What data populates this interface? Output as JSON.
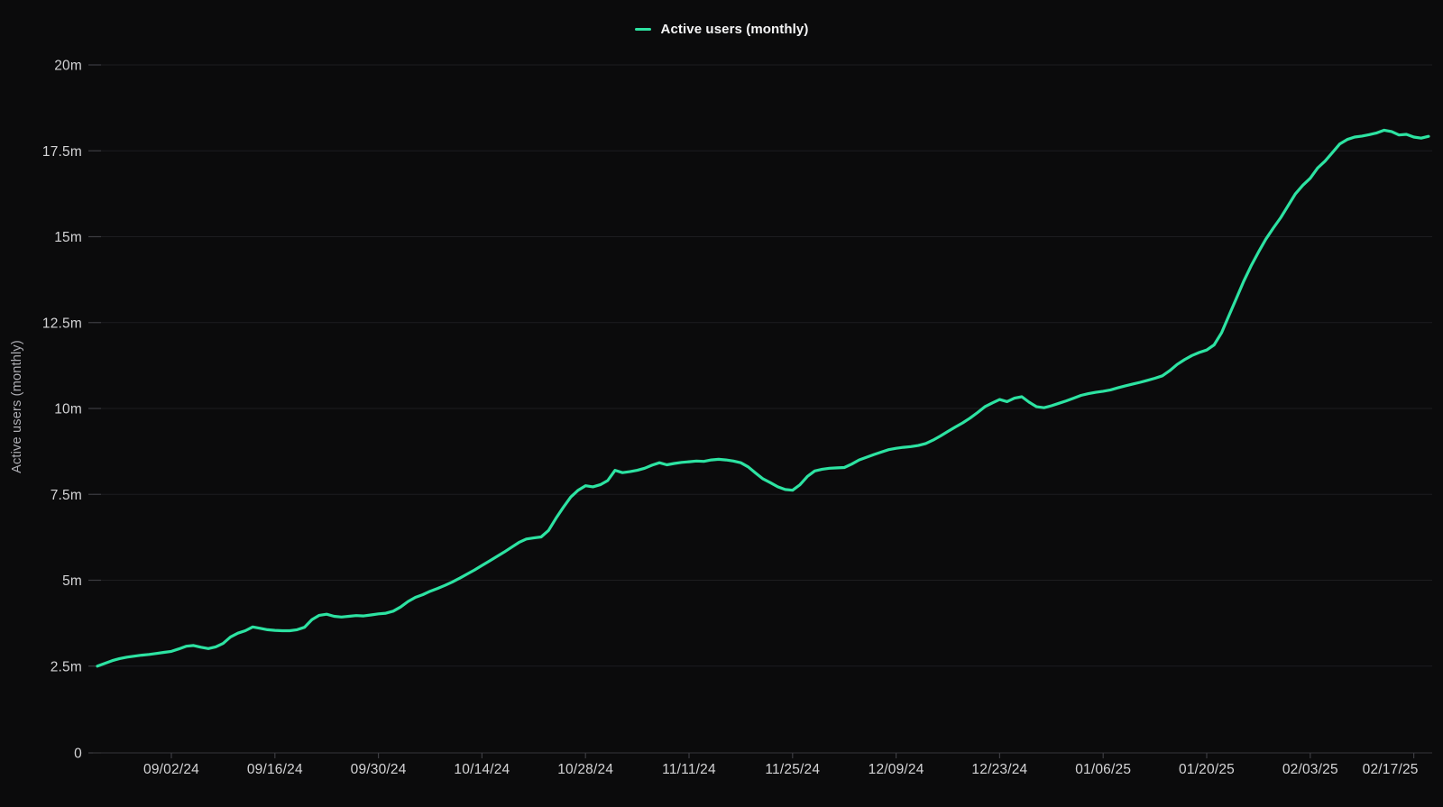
{
  "legend": {
    "label": "Active users (monthly)"
  },
  "y_axis": {
    "title": "Active users (monthly)",
    "tick_labels": [
      "20m",
      "17.5m",
      "15m",
      "12.5m",
      "10m",
      "7.5m",
      "5m",
      "2.5m",
      "0"
    ],
    "tick_values": [
      20,
      17.5,
      15,
      12.5,
      10,
      7.5,
      5,
      2.5,
      0
    ]
  },
  "x_axis": {
    "tick_labels": [
      "09/02/24",
      "09/16/24",
      "09/30/24",
      "10/14/24",
      "10/28/24",
      "11/11/24",
      "11/25/24",
      "12/09/24",
      "12/23/24",
      "01/06/25",
      "01/20/25",
      "02/03/25",
      "02/17/25"
    ],
    "tick_day_offsets": [
      0,
      14,
      28,
      42,
      56,
      70,
      84,
      98,
      112,
      126,
      140,
      154,
      168
    ]
  },
  "colors": {
    "background": "#0b0b0c",
    "series_line": "#2de3a2",
    "gridline": "#1d1d20",
    "axis_line": "#2d2d31",
    "tick_mark": "#3d3d42",
    "tick_label": "#d4d4d6",
    "y_axis_title": "#aeaeb4",
    "legend_text": "#f5f5f6"
  },
  "chart_data": {
    "type": "line",
    "title": "",
    "xlabel": "",
    "ylabel": "Active users (monthly)",
    "unit": "millions of users",
    "ylim": [
      0,
      20
    ],
    "grid": "horizontal",
    "legend_position": "top-center",
    "x_range": [
      "2024-08-23",
      "2025-02-19"
    ],
    "series": [
      {
        "name": "Active users (monthly)",
        "start_date": "2024-08-23",
        "step_days": 1,
        "values": [
          2.5,
          2.58,
          2.66,
          2.72,
          2.76,
          2.79,
          2.82,
          2.84,
          2.87,
          2.9,
          2.93,
          3.0,
          3.08,
          3.1,
          3.05,
          3.01,
          3.06,
          3.16,
          3.35,
          3.46,
          3.53,
          3.64,
          3.6,
          3.56,
          3.54,
          3.53,
          3.53,
          3.56,
          3.63,
          3.85,
          3.98,
          4.01,
          3.95,
          3.93,
          3.95,
          3.97,
          3.96,
          3.99,
          4.02,
          4.04,
          4.1,
          4.22,
          4.38,
          4.5,
          4.58,
          4.68,
          4.76,
          4.85,
          4.95,
          5.06,
          5.18,
          5.3,
          5.43,
          5.56,
          5.69,
          5.82,
          5.96,
          6.1,
          6.2,
          6.23,
          6.26,
          6.45,
          6.8,
          7.12,
          7.42,
          7.62,
          7.75,
          7.72,
          7.78,
          7.9,
          8.2,
          8.13,
          8.16,
          8.2,
          8.26,
          8.35,
          8.42,
          8.36,
          8.4,
          8.43,
          8.45,
          8.47,
          8.46,
          8.5,
          8.52,
          8.5,
          8.47,
          8.42,
          8.3,
          8.12,
          7.95,
          7.84,
          7.72,
          7.64,
          7.62,
          7.78,
          8.02,
          8.18,
          8.23,
          8.26,
          8.27,
          8.28,
          8.38,
          8.5,
          8.58,
          8.66,
          8.73,
          8.8,
          8.84,
          8.87,
          8.89,
          8.92,
          8.98,
          9.08,
          9.2,
          9.33,
          9.46,
          9.58,
          9.72,
          9.88,
          10.05,
          10.16,
          10.26,
          10.2,
          10.3,
          10.34,
          10.18,
          10.05,
          10.02,
          10.08,
          10.15,
          10.22,
          10.3,
          10.38,
          10.43,
          10.47,
          10.5,
          10.54,
          10.6,
          10.66,
          10.71,
          10.76,
          10.82,
          10.88,
          10.95,
          11.1,
          11.28,
          11.42,
          11.54,
          11.63,
          11.7,
          11.85,
          12.2,
          12.7,
          13.2,
          13.7,
          14.15,
          14.55,
          14.93,
          15.25,
          15.55,
          15.9,
          16.25,
          16.5,
          16.7,
          17.0,
          17.2,
          17.45,
          17.7,
          17.83,
          17.9,
          17.93,
          17.97,
          18.02,
          18.1,
          18.06,
          17.96,
          17.98,
          17.9,
          17.87,
          17.92
        ]
      }
    ]
  }
}
